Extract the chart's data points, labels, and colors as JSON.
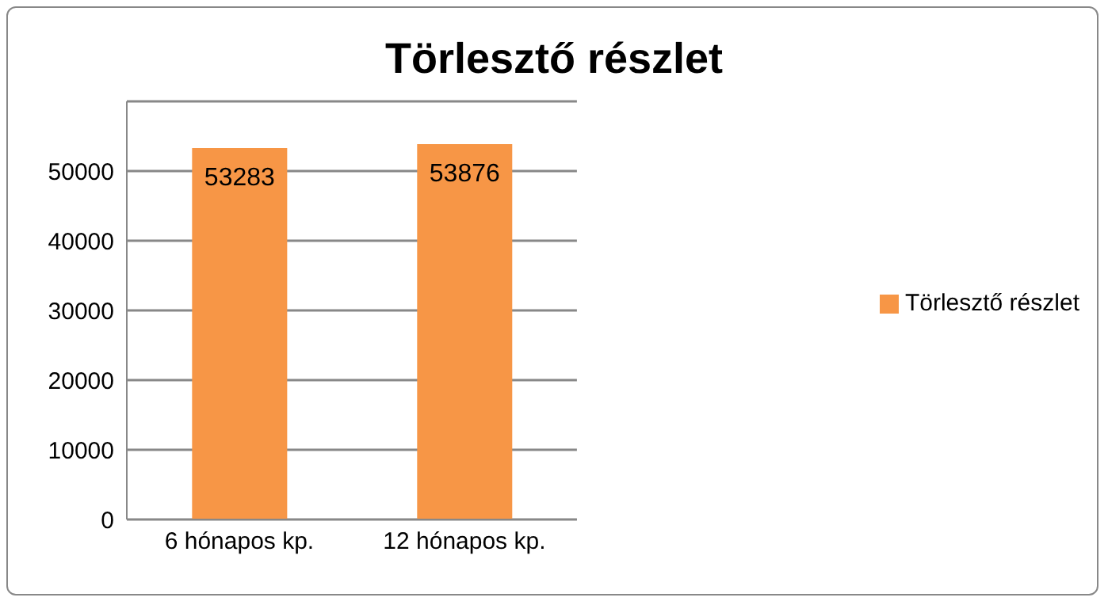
{
  "chart_data": {
    "type": "bar",
    "title": "Törlesztő részlet",
    "categories": [
      "6 hónapos kp.",
      "12 hónapos kp."
    ],
    "series": [
      {
        "name": "Törlesztő részlet",
        "color": "#f79646",
        "values": [
          53283,
          53876
        ]
      }
    ],
    "ylim": [
      0,
      60000
    ],
    "yticks": [
      0,
      10000,
      20000,
      30000,
      40000,
      50000
    ],
    "grid": "y",
    "legend": "right",
    "data_labels": true
  }
}
